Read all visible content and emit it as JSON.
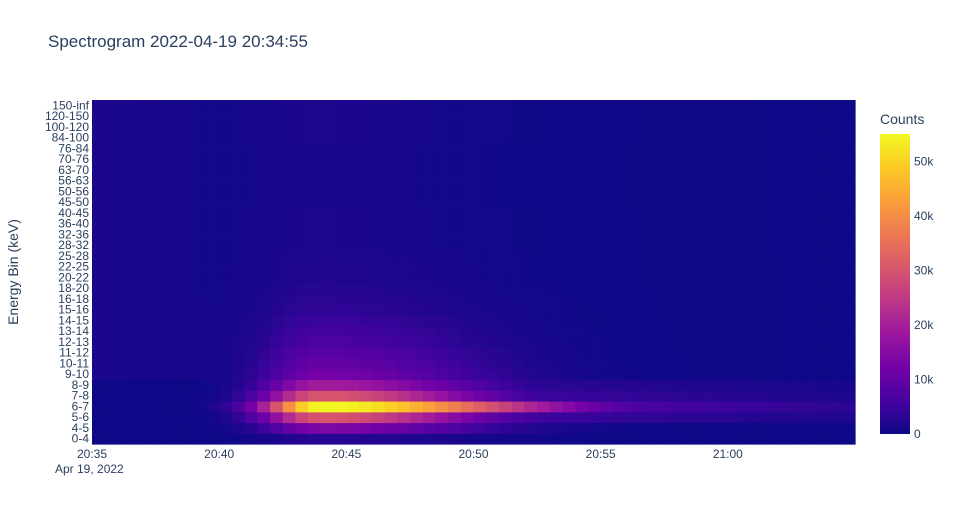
{
  "chart_data": {
    "type": "heatmap",
    "title": "Spectrogram 2022-04-19 20:34:55",
    "ylabel": "Energy Bin (keV)",
    "xlabel": "",
    "x_range": [
      "2022-04-19 20:35",
      "2022-04-19 21:05"
    ],
    "x_ticks": [
      "20:35",
      "20:40",
      "20:45",
      "20:50",
      "20:55",
      "21:00"
    ],
    "x_sublabel": "Apr 19, 2022",
    "y_categories": [
      "0-4",
      "4-5",
      "5-6",
      "6-7",
      "7-8",
      "8-9",
      "9-10",
      "10-11",
      "11-12",
      "12-13",
      "13-14",
      "14-15",
      "15-16",
      "16-18",
      "18-20",
      "20-22",
      "22-25",
      "25-28",
      "28-32",
      "32-36",
      "36-40",
      "40-45",
      "45-50",
      "50-56",
      "56-63",
      "63-70",
      "70-76",
      "76-84",
      "84-100",
      "100-120",
      "120-150",
      "150-inf"
    ],
    "colorbar": {
      "title": "Counts",
      "range": [
        0,
        55000
      ],
      "tick_values": [
        0,
        10000,
        20000,
        30000,
        40000,
        50000
      ],
      "tick_labels": [
        "0",
        "10k",
        "20k",
        "30k",
        "40k",
        "50k"
      ],
      "colorscale": [
        "#0d0887",
        "#46039f",
        "#7201a8",
        "#9c179e",
        "#bd3786",
        "#d8576b",
        "#ed7953",
        "#fb9f3a",
        "#fdca26",
        "#f0f921"
      ]
    },
    "grid": false,
    "peak": {
      "energy_bin": "6-7",
      "time": "20:44",
      "counts": 55000
    },
    "notes": "Counts concentrate in the 4-10 keV bins, peaking between about 20:42 and 20:47; the higher bins stay near 0."
  }
}
